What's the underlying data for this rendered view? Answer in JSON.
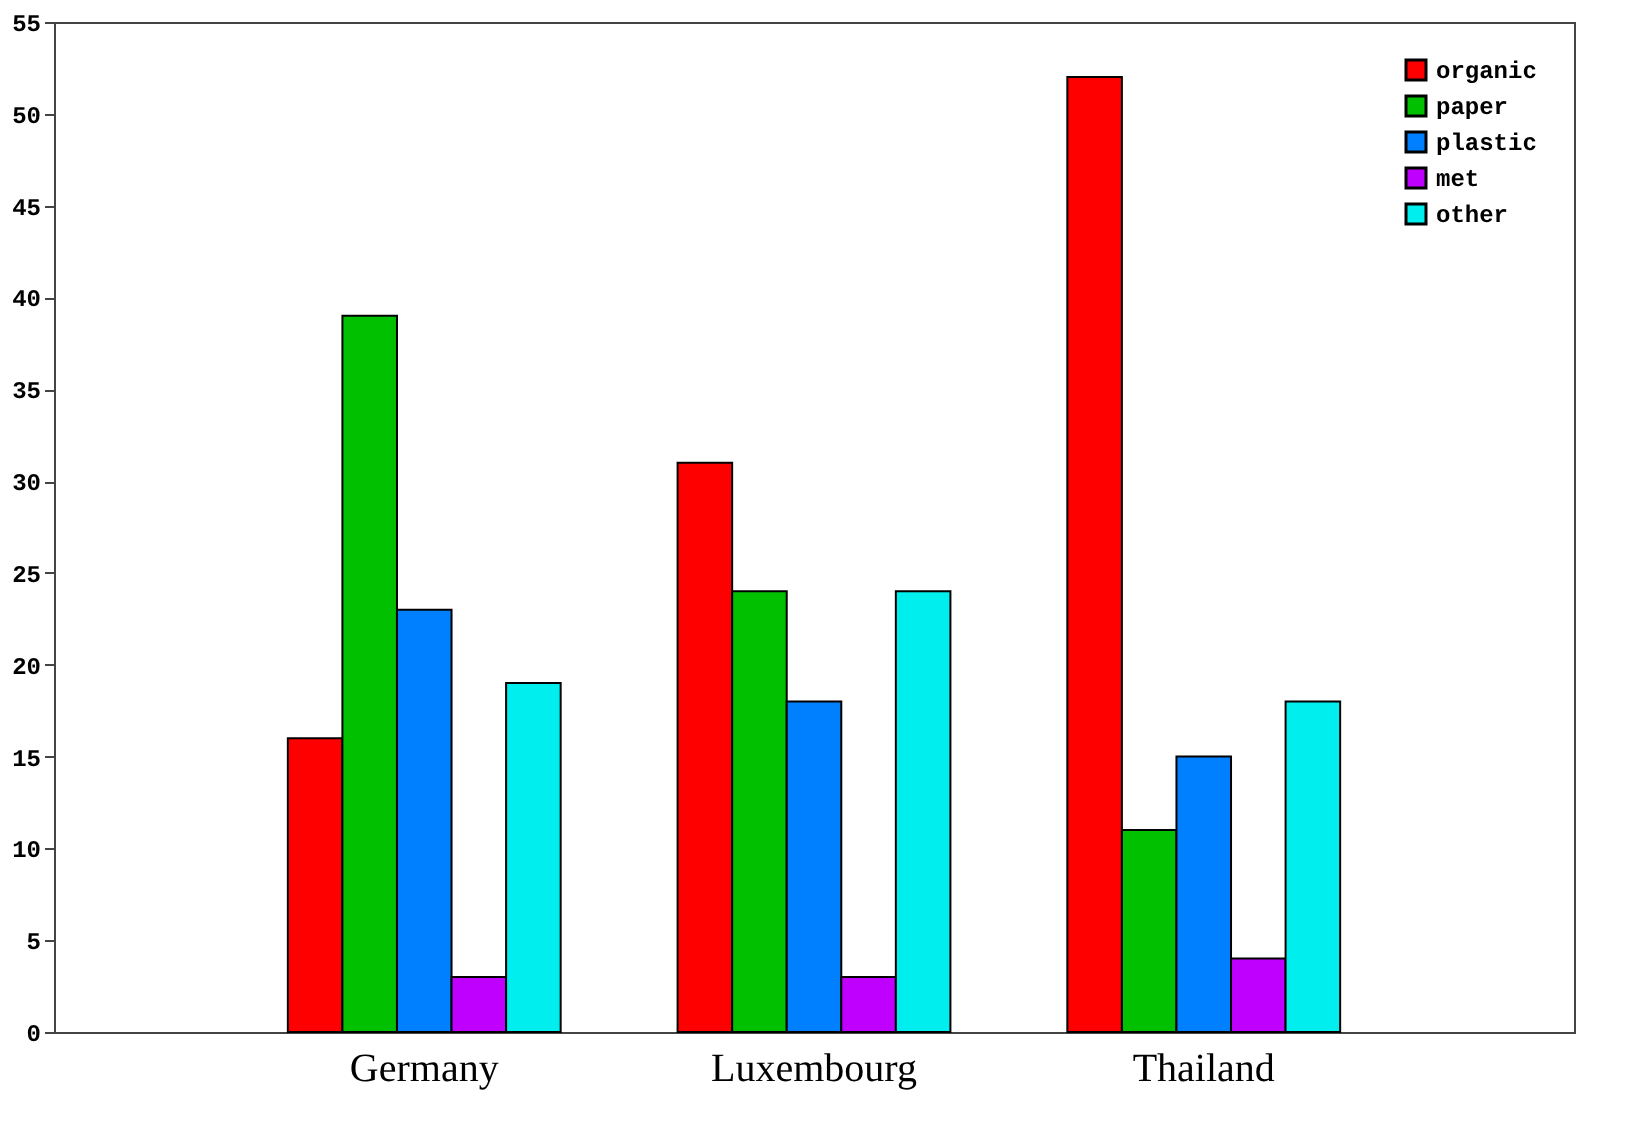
{
  "chart_data": {
    "type": "bar",
    "categories": [
      "Germany",
      "Luxembourg",
      "Thailand"
    ],
    "series": [
      {
        "name": "organic",
        "color": "#ff0000",
        "values": [
          16,
          31,
          52
        ]
      },
      {
        "name": "paper",
        "color": "#00c000",
        "values": [
          39,
          24,
          11
        ]
      },
      {
        "name": "plastic",
        "color": "#0080ff",
        "values": [
          23,
          18,
          15
        ]
      },
      {
        "name": "met",
        "color": "#c000ff",
        "values": [
          3,
          3,
          4
        ]
      },
      {
        "name": "other",
        "color": "#00eeee",
        "values": [
          19,
          24,
          18
        ]
      }
    ],
    "ylim": [
      0,
      55
    ],
    "yticks": [
      0,
      5,
      10,
      15,
      20,
      25,
      30,
      35,
      40,
      45,
      50,
      55
    ],
    "grid": false,
    "legend": "top right"
  }
}
